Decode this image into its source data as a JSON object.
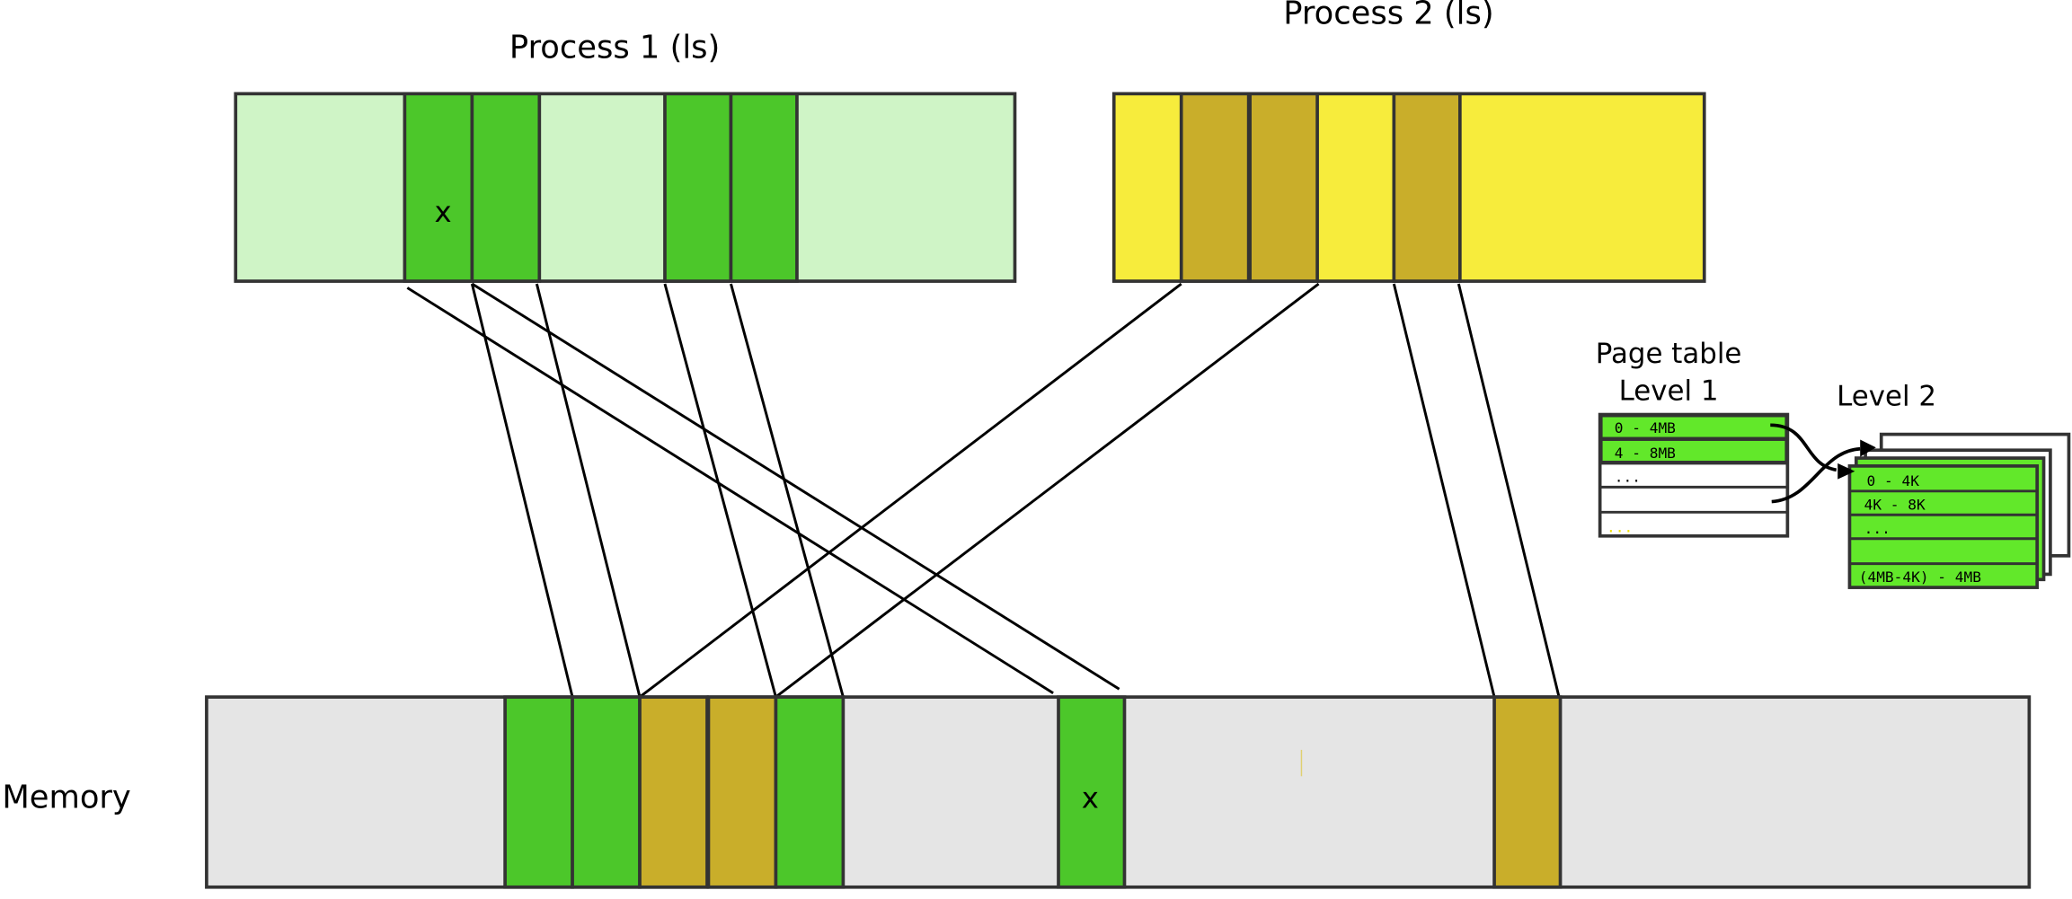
{
  "process1": {
    "title": "Process 1 (ls)",
    "marker": "x"
  },
  "process2": {
    "title": "Process 2 (ls)"
  },
  "memory": {
    "label": "Memory",
    "marker": "x"
  },
  "page_table": {
    "title": "Page table",
    "level1": {
      "label": "Level 1",
      "rows": [
        "0 - 4MB",
        "4 - 8MB",
        "...",
        "",
        "..."
      ]
    },
    "level2": {
      "label": "Level 2",
      "rows": [
        "0 - 4K",
        "4K - 8K",
        "...",
        "",
        "(4MB-4K) - 4MB"
      ]
    }
  },
  "colors": {
    "p1_light": "#cff4c6",
    "p1_page": "#4cc72a",
    "p2_light": "#f7ec3c",
    "p2_page": "#c9ae2a",
    "memory_bg": "#e5e5e5",
    "table_green": "#62e82a"
  }
}
